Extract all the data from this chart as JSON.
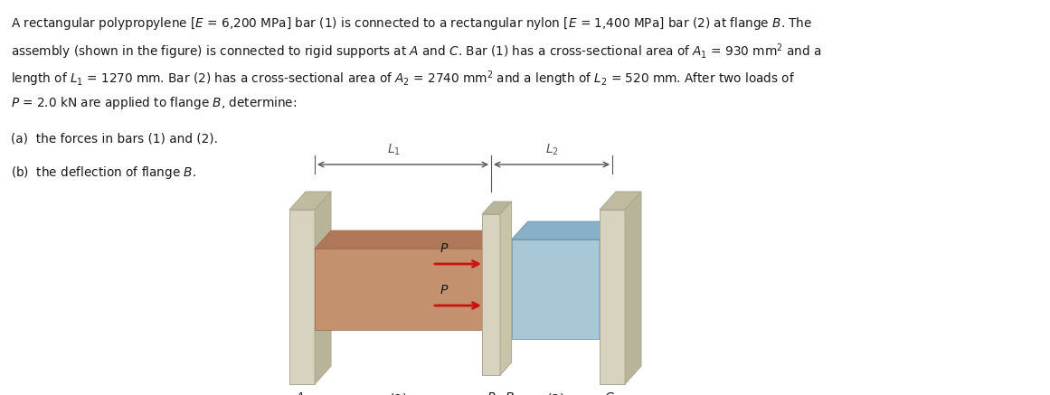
{
  "bg_color": "#ffffff",
  "text_color": "#1a1a1a",
  "fig_width": 11.61,
  "fig_height": 4.37,
  "wall_color": "#d8d3be",
  "wall_top_color": "#c0bb9e",
  "wall_right_color": "#b8b49a",
  "bar1_front_color": "#c4916e",
  "bar1_top_color": "#b07858",
  "bar2_front_color": "#a8c8d8",
  "bar2_top_color": "#88b0c8",
  "bar2_right_color": "#78a0b8",
  "flange_color": "#d8d3be",
  "flange_top_color": "#b8b49a",
  "flange_right_color": "#c8c4aa",
  "arrow_color": "#cc1111",
  "dim_color": "#555555"
}
